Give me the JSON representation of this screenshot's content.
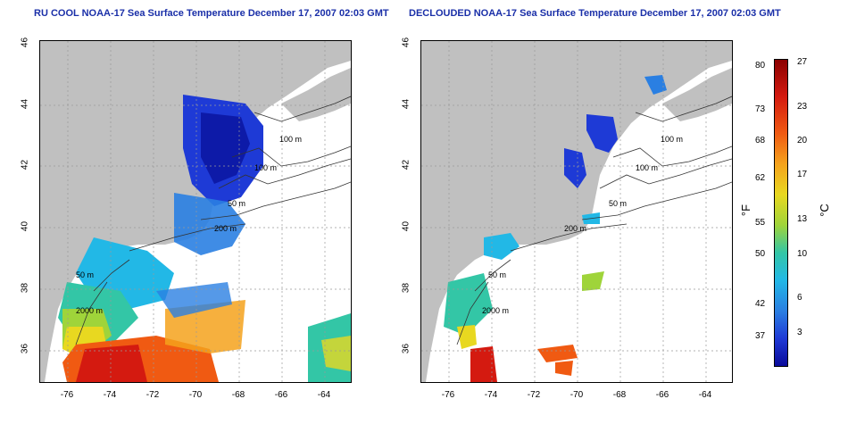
{
  "left_panel": {
    "title": "RU COOL NOAA-17 Sea Surface Temperature December 17, 2007 02:03 GMT",
    "lat_ticks": [
      "46",
      "44",
      "42",
      "40",
      "38",
      "36"
    ],
    "lon_ticks": [
      "-76",
      "-74",
      "-72",
      "-70",
      "-68",
      "-66",
      "-64"
    ],
    "contour_labels": [
      "100 m",
      "100 m",
      "50 m",
      "200 m",
      "50 m",
      "2000 m"
    ]
  },
  "right_panel": {
    "title": "DECLOUDED NOAA-17 Sea Surface Temperature December 17, 2007 02:03 GMT",
    "lat_ticks": [
      "46",
      "44",
      "42",
      "40",
      "38",
      "36"
    ],
    "lon_ticks": [
      "-76",
      "-74",
      "-72",
      "-70",
      "-68",
      "-66",
      "-64"
    ],
    "contour_labels": [
      "100 m",
      "100 m",
      "50 m",
      "200 m",
      "50 m",
      "2000 m"
    ]
  },
  "colorbar": {
    "fahrenheit_label": "°F",
    "celsius_label": "°C",
    "fahrenheit_ticks": [
      "80",
      "73",
      "68",
      "62",
      "55",
      "50",
      "42",
      "37"
    ],
    "celsius_ticks": [
      "27",
      "23",
      "20",
      "17",
      "13",
      "10",
      "6",
      "3"
    ]
  },
  "colors": {
    "title": "#1a2fa8",
    "land": "#c0c0c0",
    "water": "#ffffff"
  }
}
